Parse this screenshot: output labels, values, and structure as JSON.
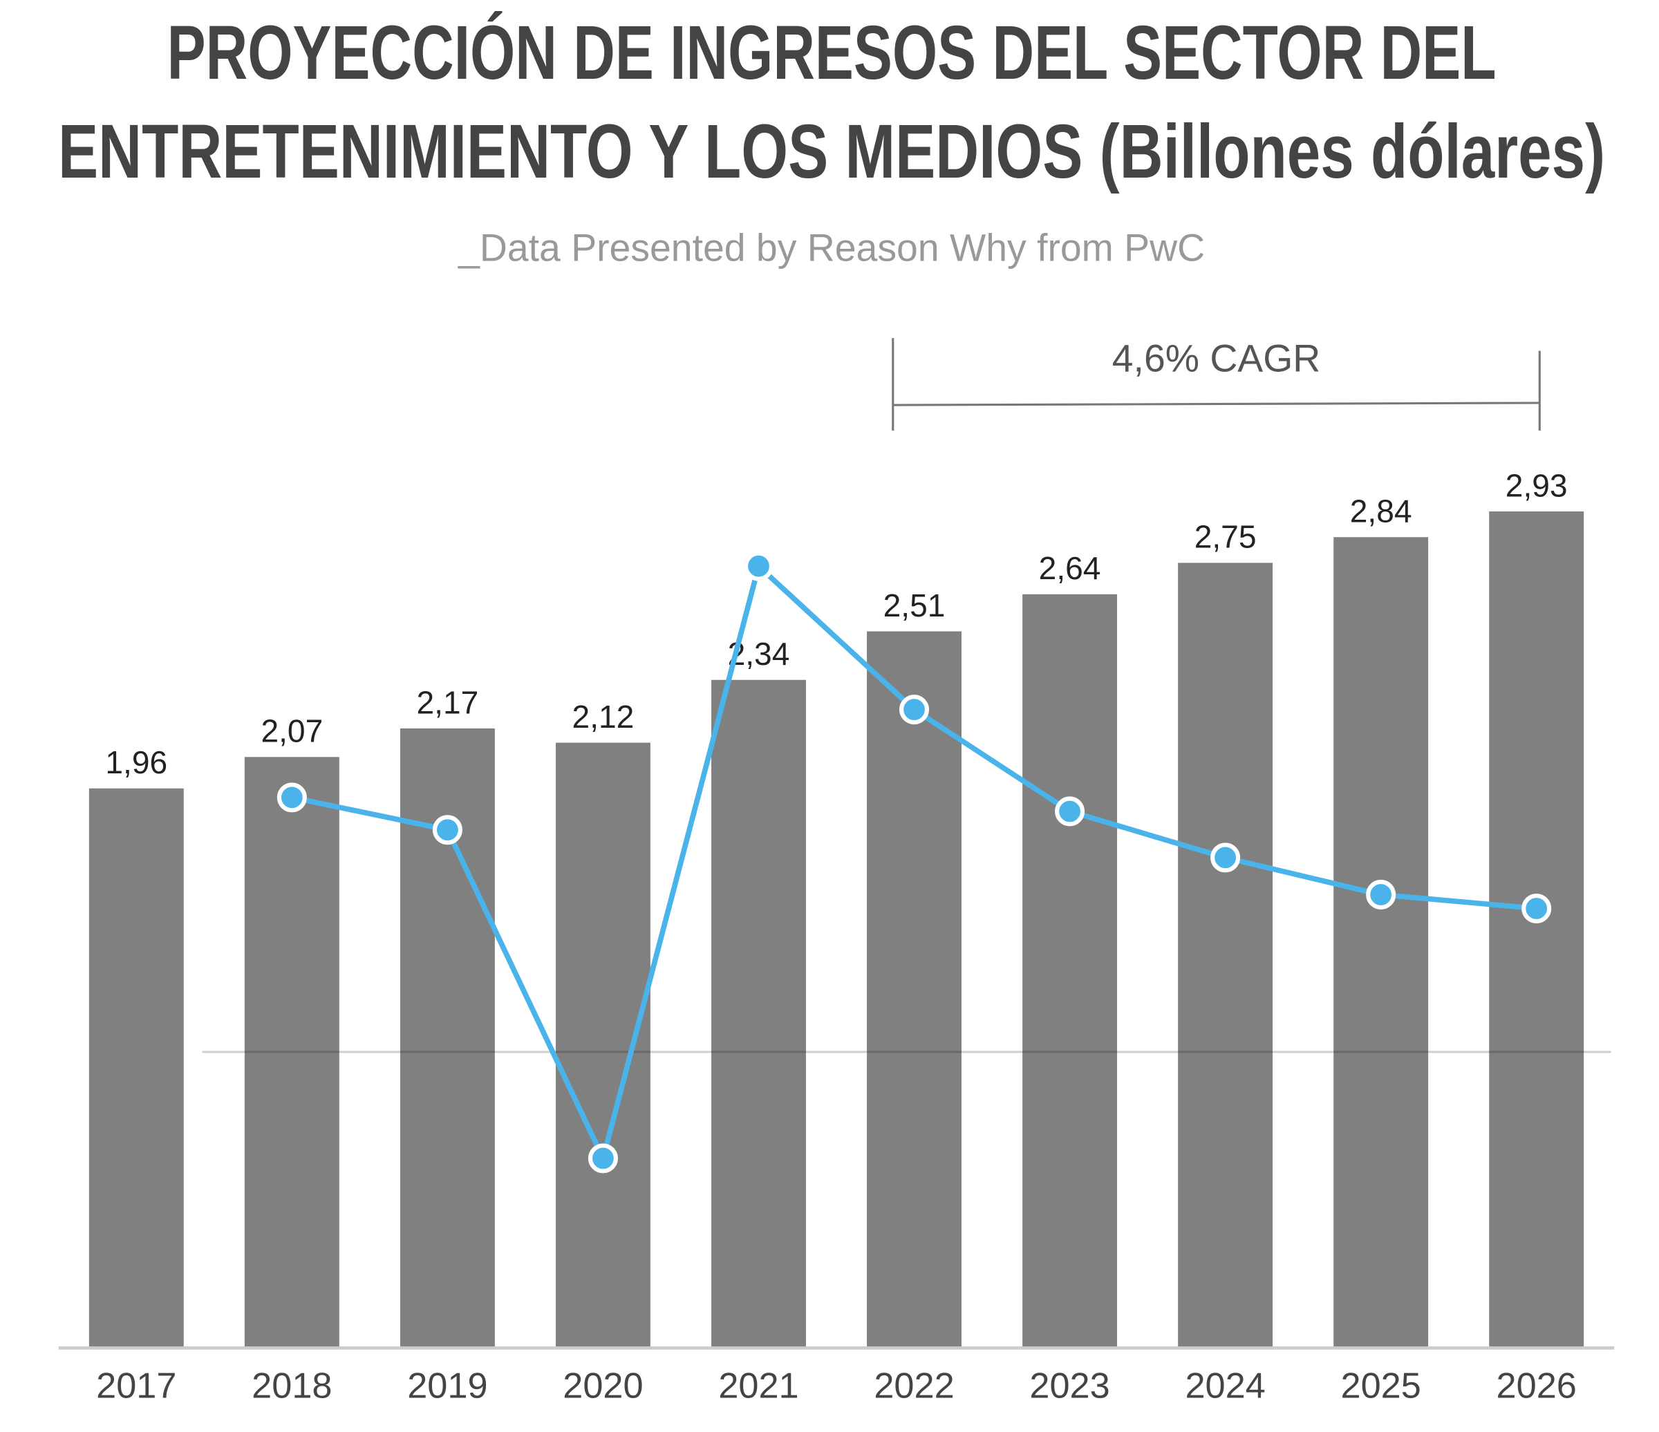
{
  "chart_data": {
    "type": "bar",
    "title": [
      "PROYECCIÓN DE INGRESOS DEL SECTOR DEL",
      "ENTRETENIMIENTO Y LOS MEDIOS (Billones dólares)"
    ],
    "subtitle": "_Data Presented by Reason Why from PwC",
    "annotation": "4,6% CAGR",
    "categories": [
      "2017",
      "2018",
      "2019",
      "2020",
      "2021",
      "2022",
      "2023",
      "2024",
      "2025",
      "2026"
    ],
    "series": [
      {
        "type": "bar",
        "color": "#808080",
        "values": [
          1.96,
          2.07,
          2.17,
          2.12,
          2.34,
          2.51,
          2.64,
          2.75,
          2.84,
          2.93
        ],
        "value_labels": [
          "1,96",
          "2,07",
          "2,17",
          "2,12",
          "2,34",
          "2,51",
          "2,64",
          "2,75",
          "2,84",
          "2,93"
        ]
      },
      {
        "type": "line",
        "axis": "y2",
        "color": "#4ab4ea",
        "values": [
          null,
          5.5,
          4.8,
          -2.3,
          10.5,
          7.4,
          5.2,
          4.2,
          3.4,
          3.1
        ]
      }
    ],
    "ylim": [
      0,
      3.5
    ],
    "y2lim": [
      -6.4,
      15.2
    ],
    "y2ticks": [
      0
    ]
  }
}
